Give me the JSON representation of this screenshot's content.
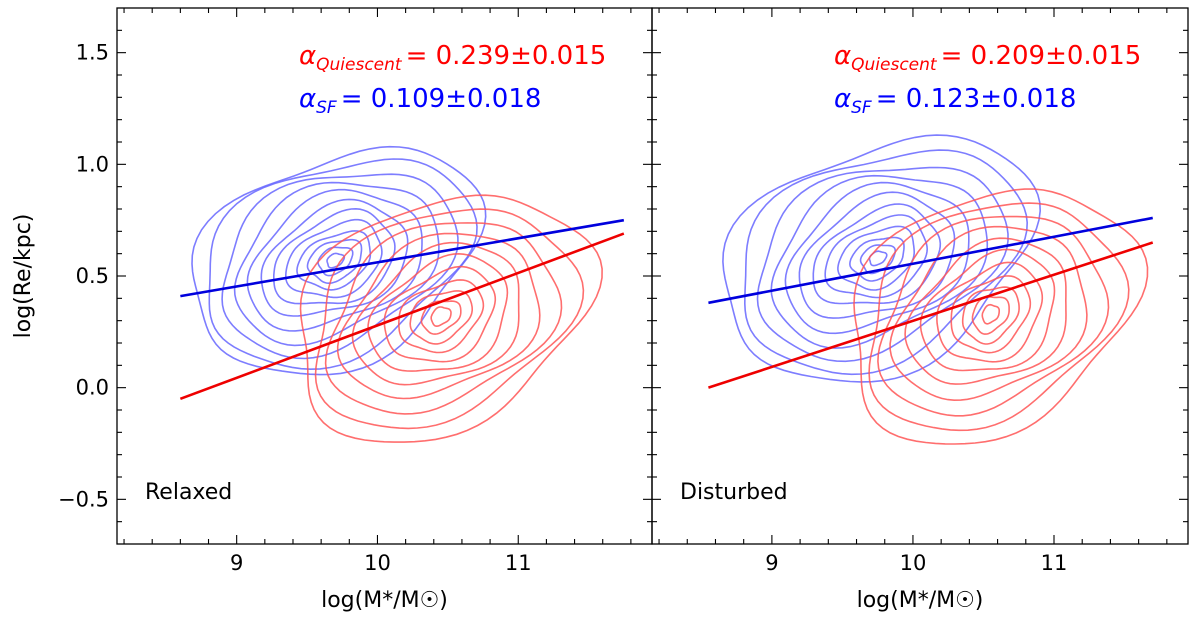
{
  "chart_data": [
    {
      "type": "contour",
      "panel": "left",
      "panel_label": "Relaxed",
      "xlabel": "log(M*/M☉)",
      "ylabel": "log(Re/kpc)",
      "xlim": [
        8.15,
        11.95
      ],
      "ylim": [
        -0.7,
        1.7
      ],
      "xticks": [
        9,
        10,
        11
      ],
      "yticks": [
        -0.5,
        0.0,
        0.5,
        1.0,
        1.5
      ],
      "ytick_labels": [
        "−0.5",
        "0.0",
        "0.5",
        "1.0",
        "1.5"
      ],
      "annotations": [
        {
          "greek": "α",
          "subscript": "Quiescent",
          "value": "= 0.239±0.015",
          "color": "#ff0000"
        },
        {
          "greek": "α",
          "subscript": "SF",
          "value": "= 0.109±0.018",
          "color": "#0000ff"
        }
      ],
      "series": [
        {
          "name": "SF fit",
          "color": "#0000dd",
          "x": [
            8.6,
            11.75
          ],
          "y": [
            0.41,
            0.75
          ]
        },
        {
          "name": "Quiescent fit",
          "color": "#ee0000",
          "x": [
            8.6,
            11.75
          ],
          "y": [
            -0.05,
            0.69
          ]
        },
        {
          "name": "SF density",
          "color": "#6666ff",
          "center": [
            9.7,
            0.57
          ],
          "radii_x": [
            1.02,
            0.95,
            0.83,
            0.72,
            0.62,
            0.52,
            0.43,
            0.34,
            0.26,
            0.19,
            0.12,
            0.06
          ],
          "radii_y": [
            0.48,
            0.44,
            0.39,
            0.34,
            0.29,
            0.24,
            0.2,
            0.16,
            0.12,
            0.09,
            0.06,
            0.03
          ]
        },
        {
          "name": "Quiescent density",
          "color": "#ff5555",
          "center": [
            10.45,
            0.32
          ],
          "radii_x": [
            1.05,
            0.93,
            0.81,
            0.7,
            0.59,
            0.49,
            0.39,
            0.3,
            0.22,
            0.14,
            0.07
          ],
          "radii_y": [
            0.53,
            0.47,
            0.41,
            0.35,
            0.3,
            0.25,
            0.2,
            0.15,
            0.11,
            0.07,
            0.04
          ]
        }
      ]
    },
    {
      "type": "contour",
      "panel": "right",
      "panel_label": "Disturbed",
      "xlabel": "log(M*/M☉)",
      "ylabel": "",
      "xlim": [
        8.15,
        11.95
      ],
      "ylim": [
        -0.7,
        1.7
      ],
      "xticks": [
        9,
        10,
        11
      ],
      "annotations": [
        {
          "greek": "α",
          "subscript": "Quiescent",
          "value": "= 0.209±0.015",
          "color": "#ff0000"
        },
        {
          "greek": "α",
          "subscript": "SF",
          "value": "= 0.123±0.018",
          "color": "#0000ff"
        }
      ],
      "series": [
        {
          "name": "SF fit",
          "color": "#0000dd",
          "x": [
            8.55,
            11.7
          ],
          "y": [
            0.38,
            0.76
          ]
        },
        {
          "name": "Quiescent fit",
          "color": "#ee0000",
          "x": [
            8.55,
            11.7
          ],
          "y": [
            0.0,
            0.65
          ]
        },
        {
          "name": "SF density",
          "color": "#6666ff",
          "center": [
            9.75,
            0.58
          ],
          "radii_x": [
            1.1,
            1.0,
            0.88,
            0.76,
            0.65,
            0.55,
            0.45,
            0.36,
            0.27,
            0.19,
            0.12,
            0.06
          ],
          "radii_y": [
            0.52,
            0.47,
            0.41,
            0.36,
            0.31,
            0.26,
            0.21,
            0.17,
            0.13,
            0.09,
            0.06,
            0.03
          ]
        },
        {
          "name": "Quiescent density",
          "color": "#ff5555",
          "center": [
            10.55,
            0.33
          ],
          "radii_x": [
            1.02,
            0.9,
            0.79,
            0.68,
            0.57,
            0.47,
            0.37,
            0.28,
            0.2,
            0.13,
            0.06
          ],
          "radii_y": [
            0.55,
            0.49,
            0.43,
            0.37,
            0.31,
            0.26,
            0.21,
            0.16,
            0.12,
            0.08,
            0.04
          ]
        }
      ]
    }
  ]
}
